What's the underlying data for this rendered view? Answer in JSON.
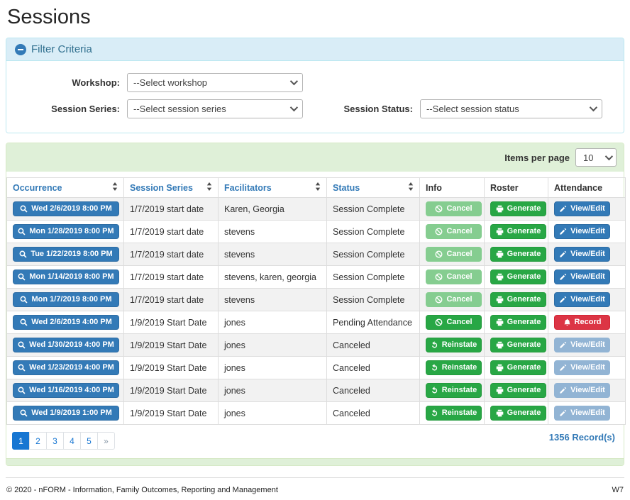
{
  "page_title": "Sessions",
  "filter": {
    "title": "Filter Criteria",
    "collapse_icon": "minus-circle-icon",
    "fields": [
      {
        "label": "Workshop:",
        "value": "--Select workshop"
      },
      {
        "label": "Session Series:",
        "value": "--Select session series"
      },
      {
        "label": "Session Status:",
        "value": "--Select session status"
      }
    ]
  },
  "table": {
    "items_per_page_label": "Items per page",
    "items_per_page_value": "10",
    "columns": [
      {
        "label": "Occurrence",
        "sortable": true
      },
      {
        "label": "Session Series",
        "sortable": true
      },
      {
        "label": "Facilitators",
        "sortable": true
      },
      {
        "label": "Status",
        "sortable": true
      },
      {
        "label": "Info",
        "sortable": false
      },
      {
        "label": "Roster",
        "sortable": false
      },
      {
        "label": "Attendance",
        "sortable": false
      }
    ],
    "actions": {
      "cancel": {
        "label": "Cancel",
        "icon": "ban-icon",
        "style": "success"
      },
      "reinstate": {
        "label": "Reinstate",
        "icon": "undo-icon",
        "style": "success"
      },
      "generate": {
        "label": "Generate",
        "icon": "printer-icon",
        "style": "success"
      },
      "view_edit": {
        "label": "View/Edit",
        "icon": "pencil-icon",
        "style": "primary"
      },
      "record": {
        "label": "Record",
        "icon": "bell-icon",
        "style": "danger"
      }
    },
    "occurrence_icon": "search-icon",
    "rows": [
      {
        "occurrence": "Wed 2/6/2019 8:00 PM",
        "session_series": "1/7/2019 start date",
        "facilitators": "Karen, Georgia",
        "status": "Session Complete",
        "info": {
          "action": "cancel",
          "disabled": true
        },
        "roster": {
          "action": "generate",
          "disabled": false
        },
        "attendance": {
          "action": "view_edit",
          "disabled": false
        }
      },
      {
        "occurrence": "Mon 1/28/2019 8:00 PM",
        "session_series": "1/7/2019 start date",
        "facilitators": "stevens",
        "status": "Session Complete",
        "info": {
          "action": "cancel",
          "disabled": true
        },
        "roster": {
          "action": "generate",
          "disabled": false
        },
        "attendance": {
          "action": "view_edit",
          "disabled": false
        }
      },
      {
        "occurrence": "Tue 1/22/2019 8:00 PM",
        "session_series": "1/7/2019 start date",
        "facilitators": "stevens",
        "status": "Session Complete",
        "info": {
          "action": "cancel",
          "disabled": true
        },
        "roster": {
          "action": "generate",
          "disabled": false
        },
        "attendance": {
          "action": "view_edit",
          "disabled": false
        }
      },
      {
        "occurrence": "Mon 1/14/2019 8:00 PM",
        "session_series": "1/7/2019 start date",
        "facilitators": "stevens, karen, georgia",
        "status": "Session Complete",
        "info": {
          "action": "cancel",
          "disabled": true
        },
        "roster": {
          "action": "generate",
          "disabled": false
        },
        "attendance": {
          "action": "view_edit",
          "disabled": false
        }
      },
      {
        "occurrence": "Mon 1/7/2019 8:00 PM",
        "session_series": "1/7/2019 start date",
        "facilitators": "stevens",
        "status": "Session Complete",
        "info": {
          "action": "cancel",
          "disabled": true
        },
        "roster": {
          "action": "generate",
          "disabled": false
        },
        "attendance": {
          "action": "view_edit",
          "disabled": false
        }
      },
      {
        "occurrence": "Wed 2/6/2019 4:00 PM",
        "session_series": "1/9/2019 Start Date",
        "facilitators": "jones",
        "status": "Pending Attendance",
        "info": {
          "action": "cancel",
          "disabled": false
        },
        "roster": {
          "action": "generate",
          "disabled": false
        },
        "attendance": {
          "action": "record",
          "disabled": false
        }
      },
      {
        "occurrence": "Wed 1/30/2019 4:00 PM",
        "session_series": "1/9/2019 Start Date",
        "facilitators": "jones",
        "status": "Canceled",
        "info": {
          "action": "reinstate",
          "disabled": false
        },
        "roster": {
          "action": "generate",
          "disabled": false
        },
        "attendance": {
          "action": "view_edit",
          "disabled": true
        }
      },
      {
        "occurrence": "Wed 1/23/2019 4:00 PM",
        "session_series": "1/9/2019 Start Date",
        "facilitators": "jones",
        "status": "Canceled",
        "info": {
          "action": "reinstate",
          "disabled": false
        },
        "roster": {
          "action": "generate",
          "disabled": false
        },
        "attendance": {
          "action": "view_edit",
          "disabled": true
        }
      },
      {
        "occurrence": "Wed 1/16/2019 4:00 PM",
        "session_series": "1/9/2019 Start Date",
        "facilitators": "jones",
        "status": "Canceled",
        "info": {
          "action": "reinstate",
          "disabled": false
        },
        "roster": {
          "action": "generate",
          "disabled": false
        },
        "attendance": {
          "action": "view_edit",
          "disabled": true
        }
      },
      {
        "occurrence": "Wed 1/9/2019 1:00 PM",
        "session_series": "1/9/2019 Start Date",
        "facilitators": "jones",
        "status": "Canceled",
        "info": {
          "action": "reinstate",
          "disabled": false
        },
        "roster": {
          "action": "generate",
          "disabled": false
        },
        "attendance": {
          "action": "view_edit",
          "disabled": true
        }
      }
    ],
    "record_count": "1356 Record(s)"
  },
  "pagination": {
    "pages": [
      "1",
      "2",
      "3",
      "4",
      "5",
      "»"
    ],
    "active": "1"
  },
  "footer": {
    "copyright": "© 2020 - nFORM - Information, Family Outcomes, Reporting and Management",
    "version": "W7"
  },
  "colors": {
    "accent_blue": "#337ab7",
    "success_green": "#28a745",
    "danger_red": "#dc3545",
    "panel_info_bg": "#d9edf7",
    "panel_success_bg": "#dff0d8",
    "active_page_blue": "#1776d2"
  }
}
